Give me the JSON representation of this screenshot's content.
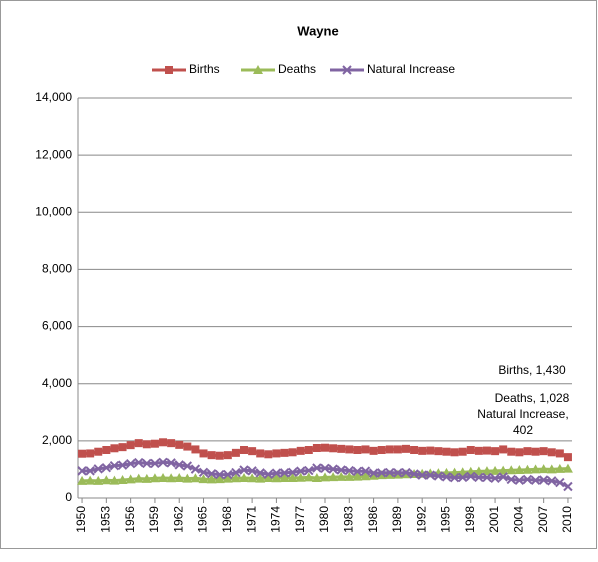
{
  "chart_data": {
    "type": "line",
    "title": "Wayne",
    "x": [
      1950,
      1951,
      1952,
      1953,
      1954,
      1955,
      1956,
      1957,
      1958,
      1959,
      1960,
      1961,
      1962,
      1963,
      1964,
      1965,
      1966,
      1967,
      1968,
      1969,
      1970,
      1971,
      1972,
      1973,
      1974,
      1975,
      1976,
      1977,
      1978,
      1979,
      1980,
      1981,
      1982,
      1983,
      1984,
      1985,
      1986,
      1987,
      1988,
      1989,
      1990,
      1991,
      1992,
      1993,
      1994,
      1995,
      1996,
      1997,
      1998,
      1999,
      2000,
      2001,
      2002,
      2003,
      2004,
      2005,
      2006,
      2007,
      2008,
      2009,
      2010
    ],
    "xlim": [
      1949.5,
      2010.5
    ],
    "xticks": [
      1950,
      1953,
      1956,
      1959,
      1962,
      1965,
      1968,
      1971,
      1974,
      1977,
      1980,
      1983,
      1986,
      1989,
      1992,
      1995,
      1998,
      2001,
      2004,
      2007,
      2010
    ],
    "ylim": [
      0,
      14000
    ],
    "yticks": [
      0,
      {
        "value": 2000,
        "label": "2,000"
      },
      {
        "value": 4000,
        "label": "4,000"
      },
      {
        "value": 6000,
        "label": "6,000"
      },
      {
        "value": 8000,
        "label": "8,000"
      },
      {
        "value": 10000,
        "label": "10,000"
      },
      {
        "value": 12000,
        "label": "12,000"
      },
      {
        "value": 14000,
        "label": "14,000"
      }
    ],
    "grid": true,
    "legend": "top",
    "series": [
      {
        "name": "Births",
        "color": "#c0504d",
        "marker": "square",
        "end_label": "Births, 1,430",
        "values": [
          1550,
          1560,
          1620,
          1680,
          1740,
          1780,
          1850,
          1920,
          1880,
          1900,
          1950,
          1920,
          1860,
          1800,
          1700,
          1560,
          1500,
          1480,
          1500,
          1580,
          1680,
          1640,
          1560,
          1530,
          1560,
          1580,
          1600,
          1650,
          1680,
          1750,
          1760,
          1740,
          1720,
          1700,
          1680,
          1700,
          1650,
          1680,
          1700,
          1700,
          1720,
          1680,
          1650,
          1660,
          1640,
          1620,
          1600,
          1620,
          1680,
          1650,
          1660,
          1640,
          1700,
          1620,
          1600,
          1640,
          1620,
          1640,
          1600,
          1560,
          1430
        ]
      },
      {
        "name": "Deaths",
        "color": "#9bbb59",
        "marker": "triangle",
        "end_label": "Deaths, 1,028",
        "values": [
          600,
          610,
          600,
          620,
          610,
          630,
          650,
          680,
          670,
          690,
          700,
          690,
          700,
          680,
          690,
          660,
          650,
          660,
          680,
          690,
          700,
          690,
          680,
          700,
          690,
          700,
          700,
          710,
          720,
          700,
          720,
          730,
          740,
          740,
          750,
          760,
          780,
          800,
          810,
          820,
          830,
          840,
          850,
          860,
          870,
          880,
          890,
          900,
          920,
          930,
          940,
          950,
          960,
          970,
          980,
          990,
          1000,
          1010,
          1000,
          1020,
          1028
        ]
      },
      {
        "name": "Natural Increase",
        "color": "#8064a2",
        "marker": "cross",
        "end_label": "Natural Increase, 402",
        "values": [
          950,
          950,
          1020,
          1060,
          1130,
          1150,
          1200,
          1240,
          1210,
          1210,
          1250,
          1230,
          1160,
          1120,
          1010,
          900,
          850,
          820,
          820,
          890,
          980,
          950,
          880,
          830,
          870,
          880,
          900,
          940,
          960,
          1050,
          1040,
          1010,
          980,
          960,
          930,
          940,
          870,
          880,
          890,
          880,
          890,
          840,
          800,
          800,
          770,
          740,
          710,
          720,
          760,
          720,
          720,
          690,
          740,
          650,
          620,
          650,
          620,
          630,
          600,
          540,
          402
        ]
      }
    ]
  }
}
